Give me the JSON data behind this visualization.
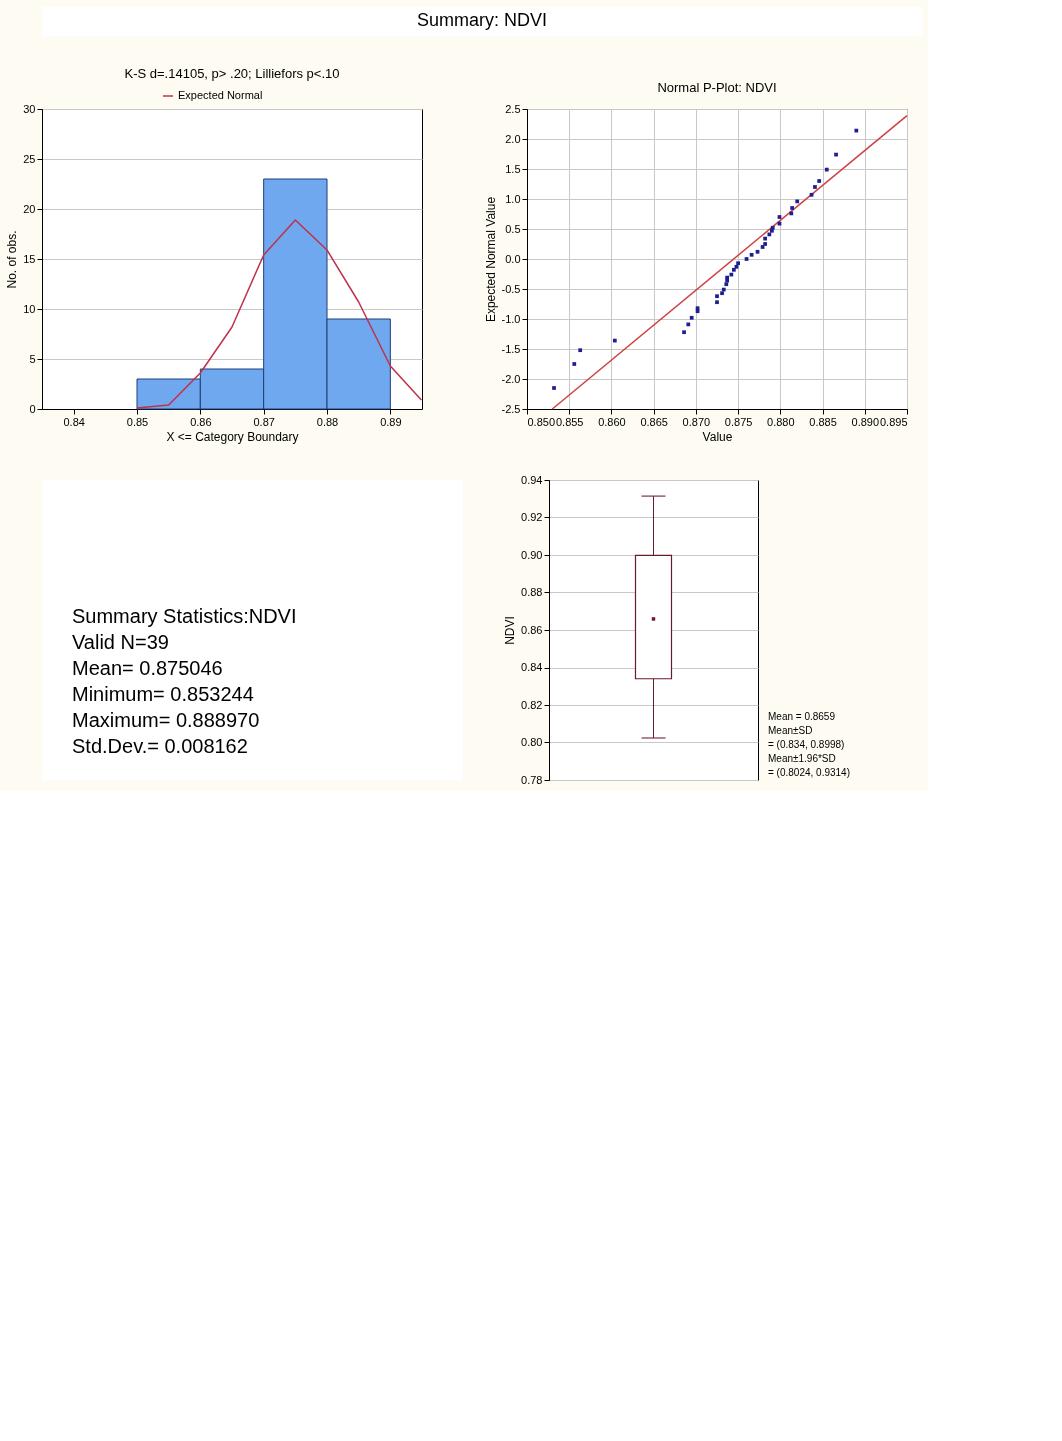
{
  "chart_data": [
    {
      "type": "other",
      "title": "Summary: NDVI"
    },
    {
      "type": "histogram",
      "title": "K-S d=.14105, p> .20; Lilliefors p<.10",
      "xlabel": "X <= Category Boundary",
      "ylabel": "No. of obs.",
      "bins": [
        0.85,
        0.86,
        0.87,
        0.88,
        0.89
      ],
      "values": [
        3,
        4,
        23,
        9
      ],
      "color": "#6fa8ee",
      "xlim": [
        0.835,
        0.895
      ],
      "xticks": [
        0.84,
        0.85,
        0.86,
        0.87,
        0.88,
        0.89
      ],
      "ylim": [
        0,
        30
      ],
      "yticks": [
        0,
        5,
        10,
        15,
        20,
        25,
        30
      ],
      "grid": "y",
      "legend": "top",
      "series": [
        {
          "name": "Expected Normal",
          "type": "line",
          "color": "#c0304a",
          "x": [
            0.85,
            0.855,
            0.86,
            0.865,
            0.87,
            0.875,
            0.88,
            0.885,
            0.89,
            0.8949
          ],
          "values": [
            0.1,
            0.4,
            3.6,
            8.2,
            15.4,
            18.9,
            15.9,
            10.7,
            4.3,
            0.9
          ]
        }
      ]
    },
    {
      "type": "scatter",
      "title": "Normal P-Plot: NDVI",
      "xlabel": "Value",
      "ylabel": "Expected Normal Value",
      "grid": true,
      "xlim": [
        0.85,
        0.895
      ],
      "xticks": [
        {
          "value": 0.85,
          "label": "0.850"
        },
        0.855,
        {
          "value": 0.86,
          "label": "0.860"
        },
        0.865,
        {
          "value": 0.87,
          "label": "0.870"
        },
        0.875,
        {
          "value": 0.88,
          "label": "0.880"
        },
        0.885,
        {
          "value": 0.89,
          "label": "0.890"
        },
        0.895
      ],
      "ylim": [
        -2.5,
        2.5
      ],
      "yticks": [
        -2.5,
        {
          "value": -2,
          "label": "-2.0"
        },
        -1.5,
        {
          "value": -1,
          "label": "-1.0"
        },
        -0.5,
        {
          "value": 0,
          "label": "0.0"
        },
        0.5,
        {
          "value": 1,
          "label": "1.0"
        },
        1.5,
        {
          "value": 2,
          "label": "2.0"
        },
        2.5
      ],
      "series": [
        {
          "type": "scatter",
          "marker": "square",
          "color": "#1f1f8f",
          "x": [
            0.889,
            0.8866,
            0.8855,
            0.8846,
            0.8841,
            0.8837,
            0.882,
            0.8814,
            0.8813,
            0.8799,
            0.8799,
            0.8791,
            0.879,
            0.8787,
            0.8782,
            0.8782,
            0.8779,
            0.8773,
            0.8766,
            0.876,
            0.875,
            0.8748,
            0.8745,
            0.8742,
            0.8737,
            0.8737,
            0.8736,
            0.8733,
            0.8731,
            0.8725,
            0.8725,
            0.8702,
            0.8702,
            0.8695,
            0.8691,
            0.8686,
            0.8604,
            0.8563,
            0.8556,
            0.8532
          ],
          "values": [
            2.14,
            1.74,
            1.49,
            1.3,
            1.2,
            1.07,
            0.96,
            0.85,
            0.76,
            0.7,
            0.59,
            0.52,
            0.47,
            0.41,
            0.34,
            0.25,
            0.2,
            0.12,
            0.07,
            0.0,
            -0.07,
            -0.13,
            -0.18,
            -0.26,
            -0.31,
            -0.36,
            -0.42,
            -0.51,
            -0.57,
            -0.62,
            -0.72,
            -0.82,
            -0.87,
            -0.98,
            -1.09,
            -1.22,
            -1.36,
            -1.52,
            -1.75,
            -2.15
          ]
        },
        {
          "type": "line",
          "color": "#d04040",
          "x": [
            0.853,
            0.895
          ],
          "values": [
            -2.5,
            2.39
          ]
        }
      ]
    },
    {
      "type": "other",
      "annotations": [
        "Summary Statistics:NDVI",
        "Valid N=39",
        "Mean=  0.875046",
        "Minimum=  0.853244",
        "Maximum=  0.888970",
        "Std.Dev.=  0.008162"
      ]
    },
    {
      "type": "box",
      "ylabel": "NDVI",
      "categories": [
        null
      ],
      "color": "#6b1a2a",
      "tick_labels": "y",
      "grid": "y",
      "ylim": [
        0.78,
        0.94
      ],
      "yticks": [
        0.78,
        {
          "value": 0.8,
          "label": "0.80"
        },
        0.82,
        0.84,
        0.86,
        0.88,
        {
          "value": 0.9,
          "label": "0.90"
        },
        0.92,
        0.94
      ],
      "boxes": [
        {
          "low": 0.8024,
          "q1": 0.834,
          "q3": 0.8998,
          "high": 0.9314,
          "mean": 0.8659
        }
      ],
      "annotations": [
        "Mean = 0.8659",
        "Mean±SD",
        "= (0.834, 0.8998)",
        "Mean±1.96*SD",
        "= (0.8024, 0.9314)"
      ]
    }
  ]
}
